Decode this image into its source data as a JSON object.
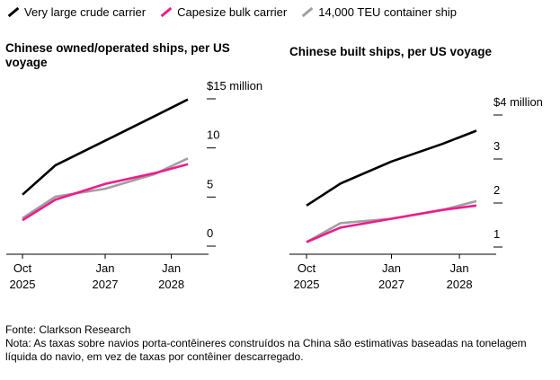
{
  "legend": [
    {
      "label": "Very large crude carrier",
      "color": "#000000"
    },
    {
      "label": "Capesize bulk carrier",
      "color": "#ee1c8c"
    },
    {
      "label": "14,000 TEU container ship",
      "color": "#a0a0a0"
    }
  ],
  "footer": {
    "source": "Fonte: Clarkson Research",
    "note": "Nota: As taxas sobre navios porta-contêineres construídos na China são estimativas baseadas na tonelagem líquida do navio, em vez de taxas por contêiner descarregado."
  },
  "chart_data": [
    {
      "type": "line",
      "title": "Chinese owned/operated ships, per US voyage",
      "x": [
        "2025-10",
        "2026-04",
        "2027-01",
        "2027-10",
        "2028-04"
      ],
      "x_ticks": [
        {
          "at": "2025-10",
          "line1": "Oct",
          "line2": "2025"
        },
        {
          "at": "2027-01",
          "line1": "Jan",
          "line2": "2027"
        },
        {
          "at": "2028-01",
          "line1": "Jan",
          "line2": "2028"
        }
      ],
      "y_ticks": [
        {
          "value": 0,
          "label": "0"
        },
        {
          "value": 5,
          "label": "5"
        },
        {
          "value": 10,
          "label": "10"
        },
        {
          "value": 15,
          "label": "$15 million"
        }
      ],
      "ylim": [
        0,
        15
      ],
      "grid": false,
      "series": [
        {
          "name": "Very large crude carrier",
          "values": [
            4.6,
            7.6,
            10.1,
            12.6,
            14.3
          ]
        },
        {
          "name": "Capesize bulk carrier",
          "values": [
            2.0,
            4.1,
            5.7,
            6.8,
            7.7
          ]
        },
        {
          "name": "14,000 TEU container ship",
          "values": [
            2.2,
            4.4,
            5.2,
            6.7,
            8.3
          ]
        }
      ]
    },
    {
      "type": "line",
      "title": "Chinese built ships, per US voyage",
      "x": [
        "2025-10",
        "2026-04",
        "2027-01",
        "2027-10",
        "2028-04"
      ],
      "x_ticks": [
        {
          "at": "2025-10",
          "line1": "Oct",
          "line2": "2025"
        },
        {
          "at": "2027-01",
          "line1": "Jan",
          "line2": "2027"
        },
        {
          "at": "2028-01",
          "line1": "Jan",
          "line2": "2028"
        }
      ],
      "y_ticks": [
        {
          "value": 1,
          "label": "1"
        },
        {
          "value": 2,
          "label": "2"
        },
        {
          "value": 3,
          "label": "3"
        },
        {
          "value": 4,
          "label": "$4 million"
        }
      ],
      "ylim": [
        0.85,
        4
      ],
      "grid": false,
      "series": [
        {
          "name": "Very large crude carrier",
          "values": [
            1.8,
            2.3,
            2.8,
            3.2,
            3.5
          ]
        },
        {
          "name": "Capesize bulk carrier",
          "values": [
            0.97,
            1.3,
            1.5,
            1.7,
            1.8
          ]
        },
        {
          "name": "14,000 TEU container ship",
          "values": [
            0.97,
            1.4,
            1.5,
            1.7,
            1.9
          ]
        }
      ]
    }
  ]
}
